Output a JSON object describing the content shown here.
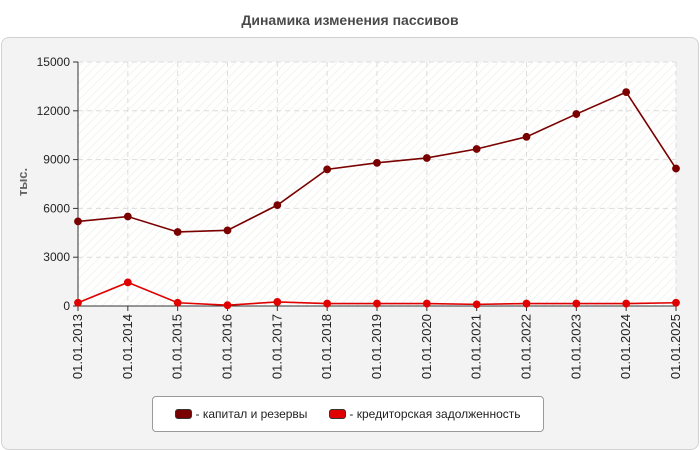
{
  "title": "Динамика изменения пассивов",
  "chart_data": {
    "type": "line",
    "title": "Динамика изменения пассивов",
    "ylabel": "тыс.",
    "xlabel": "",
    "ylim": [
      0,
      15000
    ],
    "yticks": [
      0,
      3000,
      6000,
      9000,
      12000,
      15000
    ],
    "categories": [
      "01.01.2013",
      "01.01.2014",
      "01.01.2015",
      "01.01.2016",
      "01.01.2017",
      "01.01.2018",
      "01.01.2019",
      "01.01.2020",
      "01.01.2021",
      "01.01.2022",
      "01.01.2023",
      "01.01.2024",
      "01.01.2025"
    ],
    "grid": true,
    "legend_position": "bottom",
    "series": [
      {
        "name": "- капитал и резервы",
        "color": "#7a0000",
        "values": [
          5200,
          5500,
          4550,
          4650,
          6200,
          8400,
          8800,
          9100,
          9650,
          10400,
          11800,
          13150,
          8450
        ]
      },
      {
        "name": "- кредиторская задолженность",
        "color": "#e00000",
        "values": [
          200,
          1450,
          200,
          50,
          250,
          150,
          150,
          150,
          100,
          150,
          150,
          150,
          200
        ]
      }
    ]
  }
}
